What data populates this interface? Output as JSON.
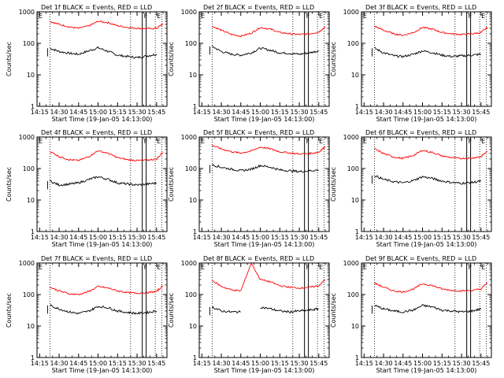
{
  "figure": {
    "xlabel": "Start Time (19-Jan-05 14:13:00)",
    "ylabel": "Counts/sec",
    "x_ticks": [
      "14:15",
      "14:30",
      "14:45",
      "15:00",
      "15:15",
      "15:30",
      "15:45"
    ],
    "y_ticks": [
      "1",
      "10",
      "100",
      "1000"
    ],
    "flag_labels": [
      "E",
      "F",
      "E"
    ],
    "colors": {
      "events": "#000000",
      "lld": "#ff0000",
      "axes": "#000000",
      "background": "#ffffff"
    }
  },
  "chart_data": [
    {
      "type": "line",
      "title": "Det 1f BLACK = Events, RED = LLD",
      "xlim": [
        "14:13",
        "15:53"
      ],
      "ylim": [
        1,
        1000
      ],
      "yscale": "log",
      "grid": false,
      "x": [
        "14:23",
        "14:30",
        "14:38",
        "14:45",
        "14:53",
        "15:00",
        "15:08",
        "15:15",
        "15:23",
        "15:30",
        "15:38",
        "15:45",
        "15:50"
      ],
      "series": [
        {
          "name": "BLACK = Events",
          "values": [
            70,
            55,
            48,
            45,
            58,
            72,
            55,
            42,
            38,
            35,
            40,
            45,
            null
          ]
        },
        {
          "name": "RED = LLD",
          "values": [
            500,
            400,
            330,
            300,
            360,
            500,
            450,
            360,
            320,
            300,
            290,
            300,
            420
          ]
        }
      ]
    },
    {
      "type": "line",
      "title": "Det 2f BLACK = Events, RED = LLD",
      "xlim": [
        "14:13",
        "15:53"
      ],
      "ylim": [
        1,
        1000
      ],
      "yscale": "log",
      "grid": false,
      "x": [
        "14:23",
        "14:30",
        "14:38",
        "14:45",
        "14:53",
        "15:00",
        "15:08",
        "15:15",
        "15:23",
        "15:30",
        "15:38",
        "15:45",
        "15:50"
      ],
      "series": [
        {
          "name": "BLACK = Events",
          "values": [
            80,
            55,
            45,
            42,
            50,
            70,
            60,
            50,
            48,
            45,
            50,
            58,
            null
          ]
        },
        {
          "name": "RED = LLD",
          "values": [
            350,
            260,
            190,
            170,
            210,
            320,
            280,
            220,
            200,
            190,
            200,
            230,
            330
          ]
        }
      ]
    },
    {
      "type": "line",
      "title": "Det 3f BLACK = Events, RED = LLD",
      "xlim": [
        "14:13",
        "15:53"
      ],
      "ylim": [
        1,
        1000
      ],
      "yscale": "log",
      "grid": false,
      "x": [
        "14:23",
        "14:30",
        "14:38",
        "14:45",
        "14:53",
        "15:00",
        "15:08",
        "15:15",
        "15:23",
        "15:30",
        "15:38",
        "15:45",
        "15:50"
      ],
      "series": [
        {
          "name": "BLACK = Events",
          "values": [
            70,
            50,
            40,
            38,
            45,
            58,
            50,
            42,
            38,
            40,
            42,
            45,
            null
          ]
        },
        {
          "name": "RED = LLD",
          "values": [
            350,
            260,
            200,
            180,
            220,
            320,
            280,
            220,
            200,
            190,
            200,
            220,
            320
          ]
        }
      ]
    },
    {
      "type": "line",
      "title": "Det 4f BLACK = Events, RED = LLD",
      "xlim": [
        "14:13",
        "15:53"
      ],
      "ylim": [
        1,
        1000
      ],
      "yscale": "log",
      "grid": false,
      "x": [
        "14:23",
        "14:30",
        "14:38",
        "14:45",
        "14:53",
        "15:00",
        "15:08",
        "15:15",
        "15:23",
        "15:30",
        "15:38",
        "15:45",
        "15:50"
      ],
      "series": [
        {
          "name": "BLACK = Events",
          "values": [
            40,
            30,
            32,
            35,
            45,
            55,
            45,
            35,
            32,
            30,
            32,
            35,
            null
          ]
        },
        {
          "name": "RED = LLD",
          "values": [
            350,
            240,
            190,
            180,
            240,
            370,
            300,
            220,
            190,
            180,
            185,
            200,
            330
          ]
        }
      ]
    },
    {
      "type": "line",
      "title": "Det 5f BLACK = Events, RED = LLD",
      "xlim": [
        "14:13",
        "15:53"
      ],
      "ylim": [
        1,
        1000
      ],
      "yscale": "log",
      "grid": false,
      "x": [
        "14:23",
        "14:30",
        "14:38",
        "14:45",
        "14:53",
        "15:00",
        "15:08",
        "15:15",
        "15:23",
        "15:30",
        "15:38",
        "15:45",
        "15:50"
      ],
      "series": [
        {
          "name": "BLACK = Events",
          "values": [
            130,
            110,
            95,
            85,
            95,
            125,
            110,
            90,
            85,
            80,
            85,
            90,
            null
          ]
        },
        {
          "name": "RED = LLD",
          "values": [
            550,
            420,
            340,
            310,
            360,
            480,
            420,
            340,
            310,
            290,
            300,
            330,
            500
          ]
        }
      ]
    },
    {
      "type": "line",
      "title": "Det 6f BLACK = Events, RED = LLD",
      "xlim": [
        "14:13",
        "15:53"
      ],
      "ylim": [
        1,
        1000
      ],
      "yscale": "log",
      "grid": false,
      "x": [
        "14:23",
        "14:30",
        "14:38",
        "14:45",
        "14:53",
        "15:00",
        "15:08",
        "15:15",
        "15:23",
        "15:30",
        "15:38",
        "15:45",
        "15:50"
      ],
      "series": [
        {
          "name": "BLACK = Events",
          "values": [
            60,
            45,
            38,
            35,
            42,
            55,
            48,
            40,
            36,
            34,
            36,
            40,
            null
          ]
        },
        {
          "name": "RED = LLD",
          "values": [
            420,
            300,
            230,
            210,
            260,
            380,
            320,
            250,
            220,
            210,
            215,
            240,
            360
          ]
        }
      ]
    },
    {
      "type": "line",
      "title": "Det 7f BLACK = Events, RED = LLD",
      "xlim": [
        "14:13",
        "15:53"
      ],
      "ylim": [
        1,
        1000
      ],
      "yscale": "log",
      "grid": false,
      "x": [
        "14:23",
        "14:30",
        "14:38",
        "14:45",
        "14:53",
        "15:00",
        "15:08",
        "15:15",
        "15:23",
        "15:30",
        "15:38",
        "15:45",
        "15:50"
      ],
      "series": [
        {
          "name": "BLACK = Events",
          "values": [
            45,
            35,
            28,
            25,
            30,
            42,
            38,
            30,
            27,
            25,
            27,
            30,
            null
          ]
        },
        {
          "name": "RED = LLD",
          "values": [
            170,
            130,
            105,
            100,
            125,
            180,
            160,
            130,
            115,
            110,
            115,
            125,
            190
          ]
        }
      ]
    },
    {
      "type": "line",
      "title": "Det 8f BLACK = Events, RED = LLD",
      "xlim": [
        "14:13",
        "15:53"
      ],
      "ylim": [
        1,
        1000
      ],
      "yscale": "log",
      "grid": false,
      "x": [
        "14:23",
        "14:30",
        "14:38",
        "14:45",
        "14:53",
        "15:00",
        "15:08",
        "15:15",
        "15:23",
        "15:30",
        "15:38",
        "15:45",
        "15:50"
      ],
      "series": [
        {
          "name": "BLACK = Events",
          "values": [
            40,
            30,
            28,
            28,
            null,
            40,
            35,
            30,
            28,
            30,
            32,
            35,
            null
          ]
        },
        {
          "name": "RED = LLD",
          "values": [
            280,
            180,
            140,
            130,
            1000,
            300,
            250,
            190,
            170,
            160,
            170,
            190,
            300
          ]
        }
      ]
    },
    {
      "type": "line",
      "title": "Det 9f BLACK = Events, RED = LLD",
      "xlim": [
        "14:13",
        "15:53"
      ],
      "ylim": [
        1,
        1000
      ],
      "yscale": "log",
      "grid": false,
      "x": [
        "14:23",
        "14:30",
        "14:38",
        "14:45",
        "14:53",
        "15:00",
        "15:08",
        "15:15",
        "15:23",
        "15:30",
        "15:38",
        "15:45",
        "15:50"
      ],
      "series": [
        {
          "name": "BLACK = Events",
          "values": [
            45,
            35,
            30,
            28,
            32,
            45,
            40,
            32,
            30,
            28,
            30,
            35,
            null
          ]
        },
        {
          "name": "RED = LLD",
          "values": [
            230,
            170,
            130,
            120,
            150,
            220,
            190,
            150,
            135,
            130,
            135,
            150,
            240
          ]
        }
      ]
    }
  ]
}
